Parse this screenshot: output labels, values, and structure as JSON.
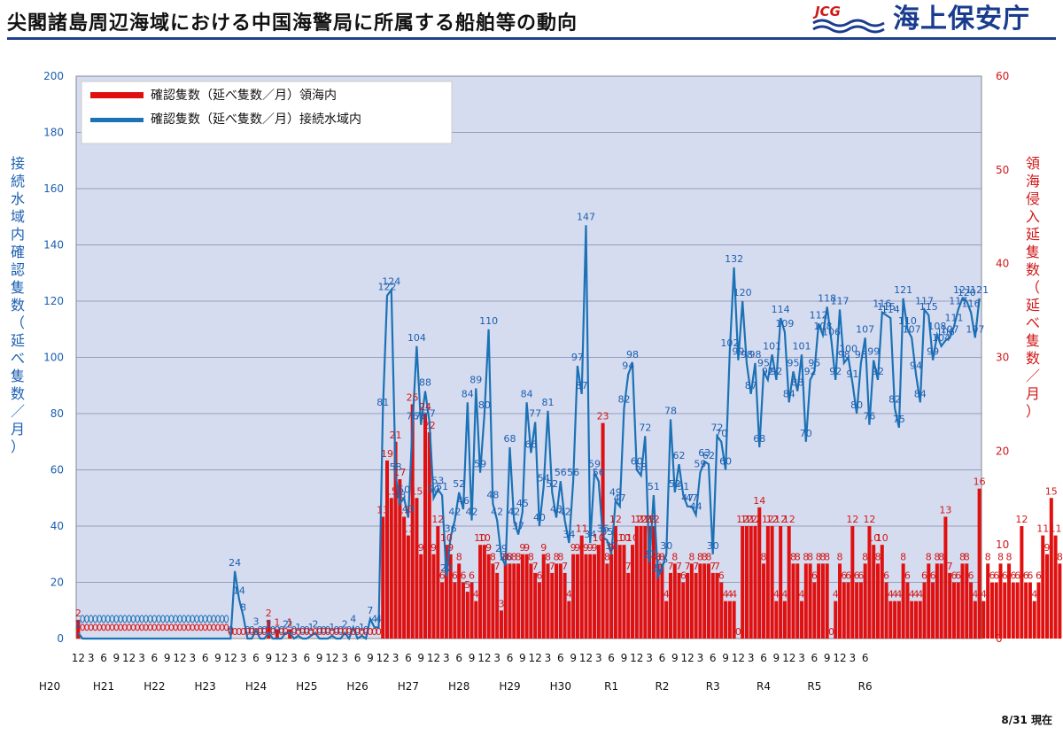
{
  "header": {
    "title": "尖閣諸島周辺海域における中国海警局に所属する船舶等の動向",
    "logo_abbr": "JCG",
    "logo_name": "海上保安庁"
  },
  "footer": {
    "as_of": "8/31 現在"
  },
  "colors": {
    "territorial": "#e01010",
    "contiguous": "#1b72b6",
    "plot_bg": "#d6dcf0",
    "left_axis": "#1b5fb0",
    "right_axis": "#d01818"
  },
  "chart_data": {
    "type": "bar+line",
    "title": "",
    "legend": [
      "確認隻数（延べ隻数／月）領海内",
      "確認隻数（延べ隻数／月）接続水域内"
    ],
    "legend_position": "top-left",
    "left_axis": {
      "label": "接続水域内確認隻数（延べ隻数／月）",
      "ylim": [
        0,
        200
      ],
      "ticks": [
        "0",
        "20",
        "40",
        "60",
        "80",
        "100",
        "120",
        "140",
        "160",
        "180",
        "200"
      ]
    },
    "right_axis": {
      "label": "領海侵入延隻数（延べ隻数／月）",
      "ylim": [
        0,
        60
      ],
      "ticks": [
        "0",
        "10",
        "20",
        "30",
        "40",
        "50",
        "60"
      ]
    },
    "x_ticks": [
      "12",
      "3",
      "6",
      "9",
      "12",
      "3",
      "6",
      "9",
      "12",
      "3",
      "6",
      "9",
      "12",
      "3",
      "6",
      "9",
      "12",
      "3",
      "6",
      "9",
      "12",
      "3",
      "6",
      "9",
      "12",
      "3",
      "6",
      "9",
      "12",
      "3",
      "6",
      "9",
      "12",
      "3",
      "6",
      "9",
      "12",
      "3",
      "6",
      "9",
      "12",
      "3",
      "6",
      "9",
      "12",
      "3",
      "6",
      "9",
      "12",
      "3",
      "6",
      "9",
      "12",
      "3",
      "6",
      "9",
      "12",
      "3",
      "6",
      "9",
      "12",
      "3",
      "6"
    ],
    "years": [
      "H20",
      "H21",
      "H22",
      "H23",
      "H24",
      "H25",
      "H26",
      "H27",
      "H28",
      "H29",
      "H30",
      "R1",
      "R2",
      "R3",
      "R4",
      "R5",
      "R6"
    ],
    "months_start": "2008-12",
    "territorial_monthly": [
      2,
      0,
      0,
      0,
      0,
      0,
      0,
      0,
      0,
      0,
      0,
      0,
      0,
      0,
      0,
      0,
      0,
      0,
      0,
      0,
      0,
      0,
      0,
      0,
      0,
      0,
      0,
      0,
      0,
      0,
      0,
      0,
      0,
      0,
      0,
      0,
      0,
      0,
      0,
      0,
      0,
      0,
      0,
      0,
      0,
      2,
      0,
      1,
      0,
      0,
      1,
      0,
      0,
      0,
      0,
      0,
      0,
      0,
      0,
      0,
      0,
      0,
      0,
      0,
      0,
      0,
      0,
      0,
      0,
      0,
      0,
      0,
      13,
      19,
      15,
      21,
      17,
      13,
      11,
      25,
      15,
      9,
      24,
      22,
      9,
      12,
      6,
      10,
      9,
      6,
      8,
      6,
      5,
      6,
      4,
      10,
      10,
      9,
      8,
      7,
      3,
      8,
      8,
      8,
      8,
      9,
      9,
      8,
      7,
      6,
      9,
      8,
      7,
      8,
      8,
      7,
      4,
      9,
      9,
      11,
      9,
      9,
      9,
      10,
      23,
      8,
      9,
      12,
      10,
      10,
      7,
      10,
      12,
      12,
      12,
      12,
      12,
      8,
      8,
      4,
      7,
      8,
      7,
      6,
      7,
      8,
      7,
      8,
      8,
      8,
      7,
      7,
      6,
      4,
      4,
      4,
      0,
      12,
      12,
      12,
      12,
      14,
      8,
      12,
      12,
      4,
      12,
      4,
      12,
      8,
      8,
      4,
      8,
      8,
      6,
      8,
      8,
      8,
      0,
      4,
      8,
      6,
      6,
      12,
      6,
      6,
      8,
      12,
      10,
      8,
      10,
      6,
      4,
      4,
      4,
      8,
      6,
      4,
      4,
      4,
      6,
      8,
      6,
      8,
      8,
      13,
      7,
      6,
      6,
      8,
      8,
      6,
      4,
      16,
      4,
      8,
      6,
      6,
      8,
      6,
      8,
      6,
      6,
      12,
      6,
      6,
      4,
      6,
      11,
      9,
      15,
      11,
      8
    ],
    "contiguous_monthly": [
      2,
      0,
      0,
      0,
      0,
      0,
      0,
      0,
      0,
      0,
      0,
      0,
      0,
      0,
      0,
      0,
      0,
      0,
      0,
      0,
      0,
      0,
      0,
      0,
      0,
      0,
      0,
      0,
      0,
      0,
      0,
      0,
      0,
      0,
      0,
      0,
      0,
      24,
      14,
      8,
      0,
      0,
      3,
      0,
      0,
      2,
      0,
      0,
      0,
      2,
      2,
      0,
      1,
      0,
      0,
      1,
      2,
      0,
      0,
      0,
      1,
      0,
      0,
      2,
      0,
      4,
      0,
      1,
      0,
      7,
      4,
      4,
      81,
      122,
      124,
      58,
      48,
      50,
      43,
      76,
      104,
      76,
      88,
      77,
      50,
      53,
      51,
      22,
      36,
      42,
      52,
      46,
      84,
      42,
      89,
      59,
      80,
      110,
      48,
      42,
      29,
      26,
      68,
      42,
      37,
      45,
      84,
      66,
      77,
      40,
      54,
      81,
      52,
      43,
      56,
      42,
      34,
      56,
      97,
      87,
      147,
      34,
      59,
      56,
      36,
      35,
      30,
      49,
      47,
      82,
      94,
      98,
      60,
      58,
      72,
      27,
      51,
      22,
      25,
      30,
      78,
      52,
      62,
      51,
      47,
      47,
      44,
      59,
      63,
      62,
      30,
      72,
      70,
      60,
      102,
      132,
      99,
      120,
      98,
      87,
      98,
      68,
      95,
      92,
      101,
      92,
      114,
      109,
      84,
      95,
      88,
      101,
      70,
      92,
      95,
      112,
      108,
      118,
      106,
      92,
      117,
      98,
      100,
      91,
      80,
      98,
      107,
      76,
      99,
      92,
      116,
      115,
      114,
      82,
      75,
      121,
      110,
      107,
      94,
      84,
      117,
      115,
      99,
      108,
      104,
      106,
      107,
      111,
      117,
      121,
      120,
      116,
      107,
      121
    ]
  }
}
